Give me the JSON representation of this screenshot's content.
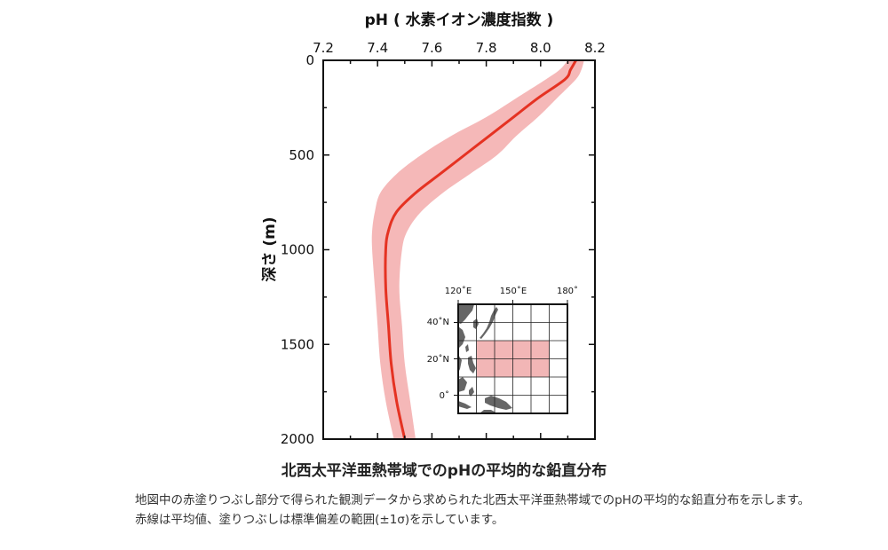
{
  "chart_data": {
    "type": "line",
    "title": "",
    "xlabel": "pH ( 水素イオン濃度指数 )",
    "ylabel": "深さ (m)",
    "x_axis_position": "top",
    "y_axis_inverted": true,
    "xlim": [
      7.2,
      8.2
    ],
    "ylim": [
      0,
      2000
    ],
    "x_ticks": [
      "7.2",
      "7.4",
      "7.6",
      "7.8",
      "8.0",
      "8.2"
    ],
    "y_ticks": [
      "0",
      "500",
      "1000",
      "1500",
      "2000"
    ],
    "grid": false,
    "series": [
      {
        "name": "",
        "role": "mean",
        "color": "#e53222",
        "depth": [
          0,
          50,
          100,
          200,
          300,
          400,
          500,
          600,
          700,
          800,
          900,
          1000,
          1200,
          1400,
          1600,
          1800,
          2000
        ],
        "ph": [
          8.13,
          8.11,
          8.09,
          7.99,
          7.9,
          7.81,
          7.72,
          7.63,
          7.54,
          7.47,
          7.44,
          7.43,
          7.43,
          7.44,
          7.45,
          7.47,
          7.5
        ]
      },
      {
        "name": "",
        "role": "±1σ band",
        "color": "#f5b8b8",
        "depth": [
          0,
          50,
          100,
          200,
          300,
          400,
          500,
          600,
          700,
          800,
          900,
          1000,
          1200,
          1400,
          1600,
          1800,
          2000
        ],
        "ph_low": [
          8.1,
          8.07,
          8.02,
          7.91,
          7.8,
          7.67,
          7.56,
          7.47,
          7.41,
          7.39,
          7.38,
          7.38,
          7.39,
          7.4,
          7.41,
          7.43,
          7.46
        ],
        "ph_high": [
          8.16,
          8.15,
          8.13,
          8.06,
          7.99,
          7.91,
          7.84,
          7.74,
          7.64,
          7.56,
          7.51,
          7.49,
          7.48,
          7.49,
          7.5,
          7.52,
          7.54
        ]
      }
    ]
  },
  "inset_map": {
    "lon_labels": [
      "120˚E",
      "150˚E",
      "180˚"
    ],
    "lat_labels": [
      "40˚N",
      "20˚N",
      "0˚"
    ],
    "region_color": "#f2b6b6",
    "land_color": "#666666"
  },
  "caption": {
    "title": "北西太平洋亜熱帯域でのpHの平均的な鉛直分布",
    "line1": "地図中の赤塗りつぶし部分で得られた観測データから求められた北西太平洋亜熱帯域でのpHの平均的な鉛直分布を示します。",
    "line2": "赤線は平均値、塗りつぶしは標準偏差の範囲(±1σ)を示しています。"
  }
}
